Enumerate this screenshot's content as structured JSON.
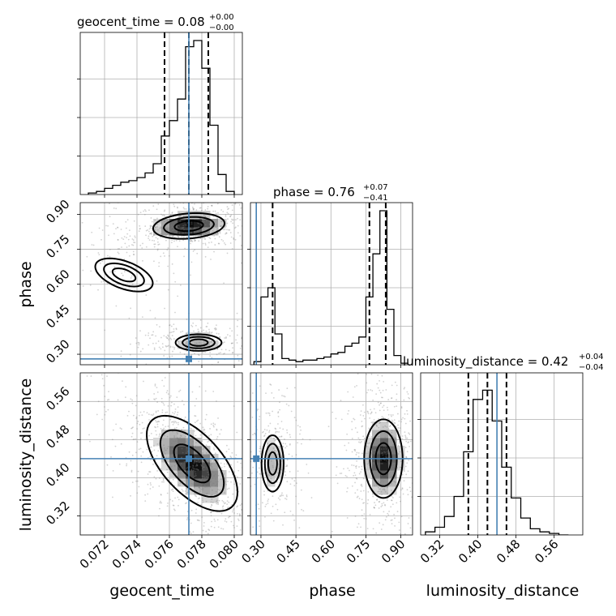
{
  "figure": {
    "params": [
      "geocent_time",
      "phase",
      "luminosity_distance"
    ],
    "truth_color": "#4682b4",
    "scatter_color": "#7f7f7f"
  },
  "titles": [
    {
      "main": "geocent_time = 0.08",
      "sup": "+0.00",
      "sub": "−0.00"
    },
    {
      "main": "phase = 0.76",
      "sup": "+0.07",
      "sub": "−0.41"
    },
    {
      "main": "luminosity_distance = 0.42",
      "sup": "+0.04",
      "sub": "−0.04"
    }
  ],
  "axis_labels": {
    "x": [
      "geocent_time",
      "phase",
      "luminosity_distance"
    ],
    "y": [
      "phase",
      "luminosity_distance"
    ]
  },
  "chart_data": {
    "type": "corner",
    "parameters": [
      "geocent_time",
      "phase",
      "luminosity_distance"
    ],
    "ranges": {
      "geocent_time": [
        0.0705,
        0.0805
      ],
      "phase": [
        0.255,
        0.95
      ],
      "luminosity_distance": [
        0.28,
        0.62
      ]
    },
    "ticks": {
      "geocent_time": [
        0.072,
        0.074,
        0.076,
        0.078,
        0.08
      ],
      "phase": [
        0.3,
        0.45,
        0.6,
        0.75,
        0.9
      ],
      "luminosity_distance": [
        0.32,
        0.4,
        0.48,
        0.56
      ]
    },
    "tick_labels": {
      "geocent_time": [
        "0.072",
        "0.074",
        "0.076",
        "0.078",
        "0.080"
      ],
      "phase": [
        "0.30",
        "0.45",
        "0.60",
        "0.75",
        "0.90"
      ],
      "luminosity_distance": [
        "0.32",
        "0.40",
        "0.48",
        "0.56"
      ]
    },
    "truths": {
      "geocent_time": 0.0772,
      "phase": 0.28,
      "luminosity_distance": 0.44
    },
    "quantiles": {
      "geocent_time": [
        0.0757,
        0.0772,
        0.0784
      ],
      "phase": [
        0.35,
        0.765,
        0.835
      ],
      "luminosity_distance": [
        0.38,
        0.42,
        0.46
      ]
    },
    "histograms": {
      "geocent_time": {
        "edges": [
          0.071,
          0.0715,
          0.072,
          0.0725,
          0.073,
          0.0735,
          0.074,
          0.0745,
          0.075,
          0.0755,
          0.076,
          0.0765,
          0.077,
          0.0775,
          0.078,
          0.0785,
          0.079,
          0.0795,
          0.08
        ],
        "counts": [
          0.01,
          0.02,
          0.04,
          0.06,
          0.08,
          0.09,
          0.11,
          0.14,
          0.2,
          0.38,
          0.48,
          0.62,
          0.96,
          1.0,
          0.82,
          0.45,
          0.13,
          0.02
        ]
      },
      "phase": {
        "edges": [
          0.27,
          0.3,
          0.33,
          0.36,
          0.39,
          0.42,
          0.45,
          0.48,
          0.51,
          0.54,
          0.57,
          0.6,
          0.63,
          0.66,
          0.69,
          0.72,
          0.75,
          0.78,
          0.81,
          0.84,
          0.87,
          0.9,
          0.93
        ],
        "counts": [
          0.02,
          0.44,
          0.5,
          0.2,
          0.04,
          0.03,
          0.02,
          0.03,
          0.03,
          0.04,
          0.05,
          0.07,
          0.08,
          0.12,
          0.14,
          0.18,
          0.44,
          0.72,
          1.0,
          0.36,
          0.06,
          0.01
        ]
      },
      "luminosity_distance": {
        "edges": [
          0.29,
          0.31,
          0.33,
          0.35,
          0.37,
          0.39,
          0.41,
          0.43,
          0.45,
          0.47,
          0.49,
          0.51,
          0.53,
          0.55,
          0.57,
          0.59
        ],
        "counts": [
          0.02,
          0.05,
          0.12,
          0.25,
          0.54,
          0.88,
          0.94,
          0.74,
          0.44,
          0.24,
          0.11,
          0.04,
          0.02,
          0.01,
          0.0
        ]
      }
    },
    "pairs": [
      {
        "x": "geocent_time",
        "y": "phase",
        "modes": [
          {
            "x": 0.0772,
            "y": 0.85,
            "sx": 0.0014,
            "sy": 0.035,
            "rho": 0.2,
            "weight": 0.62
          },
          {
            "x": 0.0778,
            "y": 0.35,
            "sx": 0.0012,
            "sy": 0.03,
            "rho": 0.0,
            "weight": 0.3
          },
          {
            "x": 0.0732,
            "y": 0.64,
            "sx": 0.0015,
            "sy": 0.06,
            "rho": -0.5,
            "weight": 0.08
          }
        ]
      },
      {
        "x": "geocent_time",
        "y": "luminosity_distance",
        "modes": [
          {
            "x": 0.0774,
            "y": 0.43,
            "sx": 0.0014,
            "sy": 0.05,
            "rho": -0.6,
            "weight": 1.0
          }
        ]
      },
      {
        "x": "phase",
        "y": "luminosity_distance",
        "modes": [
          {
            "x": 0.825,
            "y": 0.44,
            "sx": 0.05,
            "sy": 0.05,
            "rho": 0.0,
            "weight": 0.68
          },
          {
            "x": 0.35,
            "y": 0.43,
            "sx": 0.04,
            "sy": 0.05,
            "rho": 0.0,
            "weight": 0.32
          }
        ]
      }
    ]
  }
}
